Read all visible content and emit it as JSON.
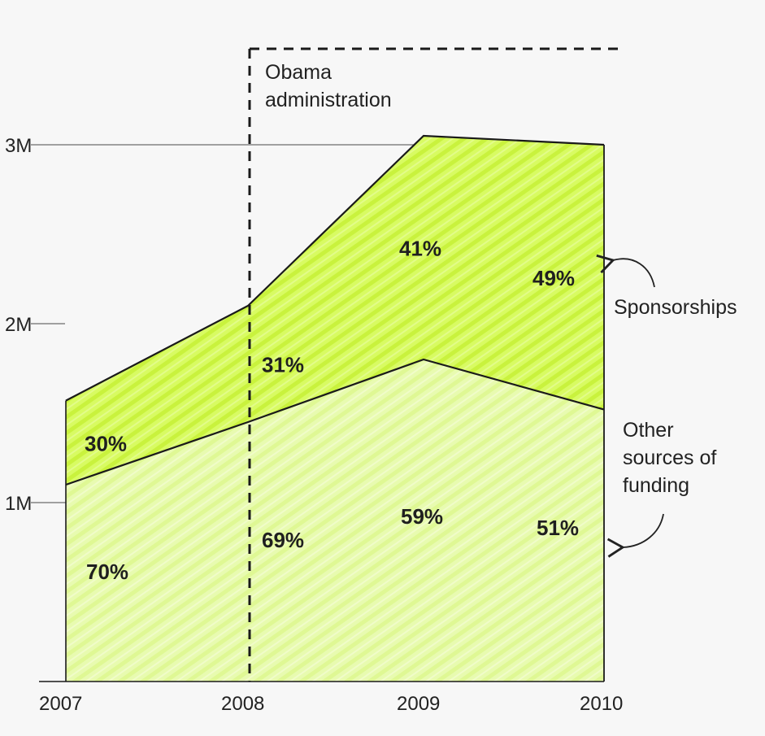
{
  "chart_data": {
    "type": "area",
    "stacked": true,
    "x": [
      "2007",
      "2008",
      "2009",
      "2010"
    ],
    "ylim": [
      0,
      3000000
    ],
    "y_ticks": [
      {
        "value": 1000000,
        "label": "1M"
      },
      {
        "value": 2000000,
        "label": "2M"
      },
      {
        "value": 3000000,
        "label": "3M"
      }
    ],
    "series": [
      {
        "name": "Other sources of funding",
        "values": [
          1100000,
          1450000,
          1800000,
          1520000
        ],
        "percent_labels": [
          "70%",
          "69%",
          "59%",
          "51%"
        ],
        "color": "#e6fba6"
      },
      {
        "name": "Sponsorships",
        "values": [
          470000,
          650000,
          1250000,
          1480000
        ],
        "percent_labels": [
          "30%",
          "31%",
          "41%",
          "49%"
        ],
        "color": "#d4fa5a"
      }
    ],
    "annotation": {
      "text_line1": "Obama",
      "text_line2": "administration",
      "x": "2008"
    },
    "side_labels": {
      "sponsorships": "Sponsorships",
      "other_line1": "Other",
      "other_line2": "sources of",
      "other_line3": "funding"
    },
    "colors": {
      "background": "#f7f7f7",
      "line": "#1a1a1a",
      "grid": "#6b6b6b"
    }
  }
}
